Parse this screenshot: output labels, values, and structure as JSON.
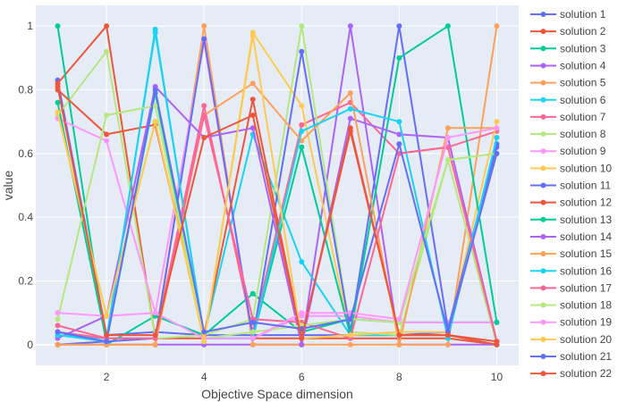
{
  "chart_data": {
    "type": "line",
    "title": "",
    "xlabel": "Objective Space dimension",
    "ylabel": "value",
    "x": [
      1,
      2,
      3,
      4,
      5,
      6,
      7,
      8,
      9,
      10
    ],
    "xlim": [
      0.55,
      10.45
    ],
    "ylim": [
      -0.065,
      1.065
    ],
    "x_ticks": [
      2,
      4,
      6,
      8,
      10
    ],
    "y_ticks": [
      0,
      0.2,
      0.4,
      0.6,
      0.8,
      1
    ],
    "x_tick_labels": [
      "2",
      "4",
      "6",
      "8",
      "10"
    ],
    "y_tick_labels": [
      "0",
      "0.2",
      "0.4",
      "0.6",
      "0.8",
      "1"
    ],
    "grid": true,
    "legend_position": "right",
    "series": [
      {
        "name": "solution 1",
        "color": "#636efa",
        "values": [
          0.83,
          0.03,
          0.04,
          0.03,
          0.03,
          0.03,
          0.03,
          0.03,
          0.04,
          0.62
        ]
      },
      {
        "name": "solution 2",
        "color": "#ef553b",
        "values": [
          0.82,
          1.0,
          0.02,
          0.02,
          0.02,
          0.02,
          0.02,
          0.02,
          0.02,
          0.0
        ]
      },
      {
        "name": "solution 3",
        "color": "#00cc96",
        "values": [
          1.0,
          0.0,
          0.09,
          0.03,
          0.16,
          0.04,
          0.08,
          0.07,
          0.07,
          0.07
        ]
      },
      {
        "name": "solution 4",
        "color": "#ab63fa",
        "values": [
          0.0,
          0.0,
          0.0,
          0.0,
          0.0,
          0.0,
          1.0,
          0.0,
          0.0,
          0.0
        ]
      },
      {
        "name": "solution 5",
        "color": "#ffa15a",
        "values": [
          0.0,
          0.0,
          0.0,
          1.0,
          0.0,
          0.0,
          0.0,
          0.0,
          0.0,
          1.0
        ]
      },
      {
        "name": "solution 6",
        "color": "#19d3f3",
        "values": [
          0.03,
          0.02,
          0.98,
          0.03,
          0.66,
          0.26,
          0.03,
          0.03,
          0.03,
          0.0
        ]
      },
      {
        "name": "solution 7",
        "color": "#ff6692",
        "values": [
          0.04,
          0.02,
          0.02,
          0.75,
          0.04,
          0.69,
          0.76,
          0.6,
          0.62,
          0.67
        ]
      },
      {
        "name": "solution 8",
        "color": "#b6e880",
        "values": [
          0.72,
          0.92,
          0.02,
          0.03,
          0.08,
          1.0,
          0.04,
          0.03,
          0.58,
          0.0
        ]
      },
      {
        "name": "solution 9",
        "color": "#ff97ff",
        "values": [
          0.71,
          0.64,
          0.1,
          0.95,
          0.02,
          0.09,
          0.09,
          0.07,
          0.07,
          0.07
        ]
      },
      {
        "name": "solution 10",
        "color": "#fecb52",
        "values": [
          0.73,
          0.09,
          0.7,
          0.01,
          0.98,
          0.75,
          0.03,
          0.04,
          0.04,
          0.7
        ]
      },
      {
        "name": "solution 11",
        "color": "#636efa",
        "values": [
          0.0,
          0.01,
          0.02,
          0.96,
          0.02,
          0.92,
          0.04,
          1.0,
          0.05,
          0.63
        ]
      },
      {
        "name": "solution 12",
        "color": "#ef553b",
        "values": [
          0.8,
          0.66,
          0.69,
          0.03,
          0.77,
          0.02,
          0.67,
          0.03,
          0.03,
          0.0
        ]
      },
      {
        "name": "solution 13",
        "color": "#00cc96",
        "values": [
          0.76,
          0.01,
          0.79,
          0.02,
          0.02,
          0.62,
          0.03,
          0.9,
          1.0,
          0.07
        ]
      },
      {
        "name": "solution 14",
        "color": "#ab63fa",
        "values": [
          0.02,
          0.09,
          0.81,
          0.65,
          0.68,
          0.0,
          0.71,
          0.66,
          0.65,
          0.01
        ]
      },
      {
        "name": "solution 15",
        "color": "#ffa15a",
        "values": [
          0.0,
          0.0,
          0.0,
          0.72,
          0.82,
          0.64,
          0.79,
          0.0,
          0.68,
          0.68
        ]
      },
      {
        "name": "solution 16",
        "color": "#19d3f3",
        "values": [
          0.03,
          0.01,
          0.99,
          0.02,
          0.02,
          0.67,
          0.74,
          0.7,
          0.02,
          0.65
        ]
      },
      {
        "name": "solution 17",
        "color": "#ff6692",
        "values": [
          0.06,
          0.02,
          0.02,
          0.72,
          0.08,
          0.07,
          0.02,
          0.6,
          0.62,
          0.01
        ]
      },
      {
        "name": "solution 18",
        "color": "#b6e880",
        "values": [
          0.08,
          0.72,
          0.75,
          0.02,
          0.04,
          0.06,
          0.08,
          0.07,
          0.58,
          0.6
        ]
      },
      {
        "name": "solution 19",
        "color": "#ff97ff",
        "values": [
          0.1,
          0.09,
          0.1,
          0.02,
          0.02,
          0.1,
          0.1,
          0.08,
          0.65,
          0.68
        ]
      },
      {
        "name": "solution 20",
        "color": "#fecb52",
        "values": [
          0.73,
          0.09,
          0.7,
          0.01,
          0.97,
          0.02,
          0.03,
          0.04,
          0.04,
          0.6
        ]
      },
      {
        "name": "solution 21",
        "color": "#636efa",
        "values": [
          0.04,
          0.01,
          0.8,
          0.04,
          0.07,
          0.05,
          0.08,
          0.63,
          0.04,
          0.6
        ]
      },
      {
        "name": "solution 22",
        "color": "#ef553b",
        "values": [
          0.81,
          0.03,
          0.03,
          0.65,
          0.72,
          0.02,
          0.68,
          0.03,
          0.03,
          0.01
        ]
      }
    ]
  }
}
